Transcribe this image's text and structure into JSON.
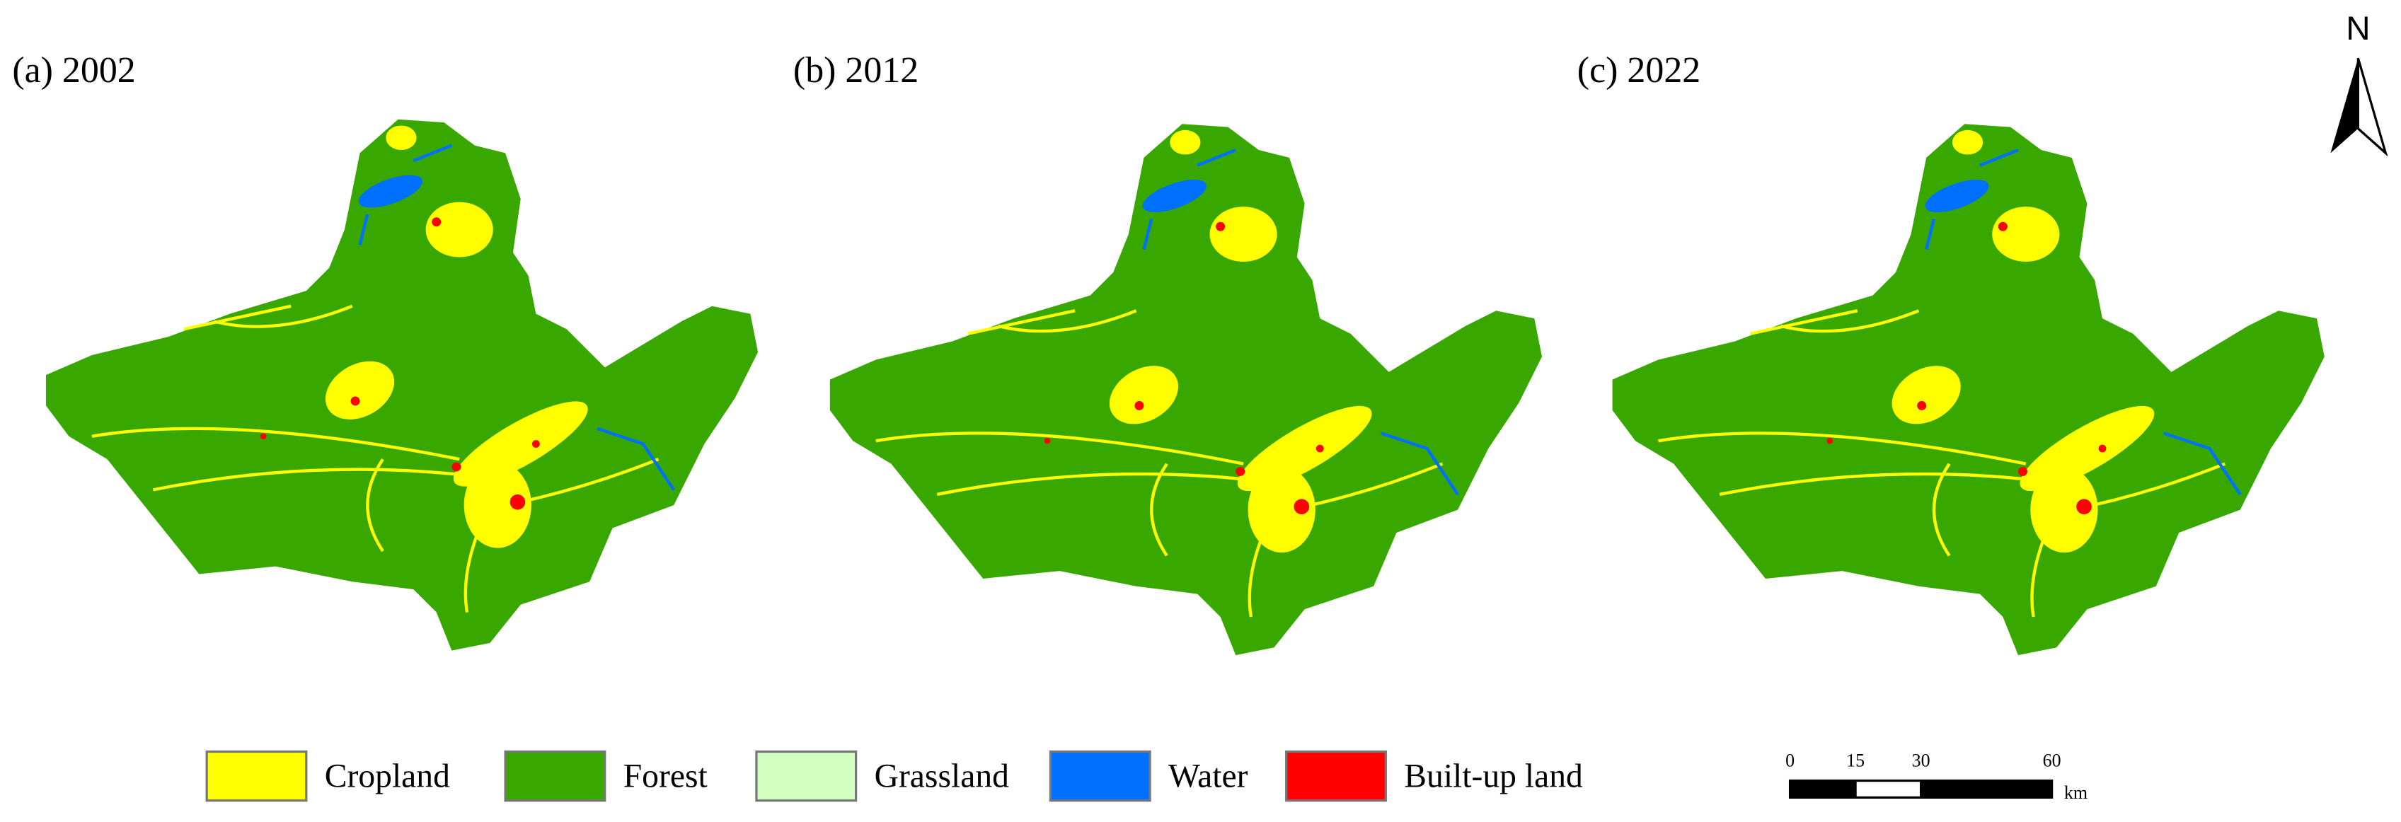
{
  "panels": [
    {
      "label": "(a) 2002"
    },
    {
      "label": "(b) 2012"
    },
    {
      "label": "(c) 2022"
    }
  ],
  "legend": [
    {
      "label": "Cropland",
      "color": "#ffff00"
    },
    {
      "label": "Forest",
      "color": "#38a800"
    },
    {
      "label": "Grassland",
      "color": "#d3ffbe"
    },
    {
      "label": "Water",
      "color": "#0070ff"
    },
    {
      "label": "Built-up land",
      "color": "#ff0000"
    }
  ],
  "north_arrow": {
    "label": "N"
  },
  "scale_bar": {
    "ticks": [
      0,
      15,
      30,
      60
    ],
    "unit": "km"
  }
}
